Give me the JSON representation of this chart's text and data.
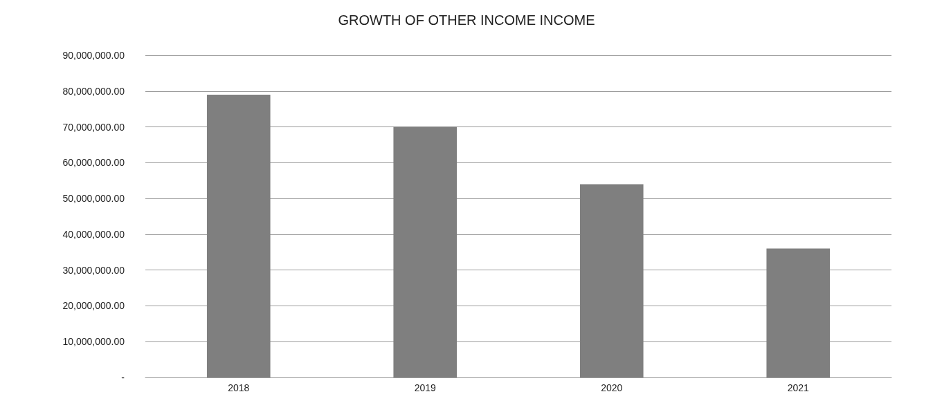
{
  "chart_data": {
    "type": "bar",
    "title": "GROWTH OF OTHER INCOME INCOME",
    "categories": [
      "2018",
      "2019",
      "2020",
      "2021"
    ],
    "values": [
      79000000,
      70000000,
      54000000,
      36000000
    ],
    "color": "#7f7f7f",
    "ylim": [
      0,
      90000000
    ],
    "yticks": [
      {
        "value": 0,
        "label": "-"
      },
      {
        "value": 10000000,
        "label": "10,000,000.00"
      },
      {
        "value": 20000000,
        "label": "20,000,000.00"
      },
      {
        "value": 30000000,
        "label": "30,000,000.00"
      },
      {
        "value": 40000000,
        "label": "40,000,000.00"
      },
      {
        "value": 50000000,
        "label": "50,000,000.00"
      },
      {
        "value": 60000000,
        "label": "60,000,000.00"
      },
      {
        "value": 70000000,
        "label": "70,000,000.00"
      },
      {
        "value": 80000000,
        "label": "80,000,000.00"
      },
      {
        "value": 90000000,
        "label": "90,000,000.00"
      }
    ],
    "grid": "y"
  }
}
